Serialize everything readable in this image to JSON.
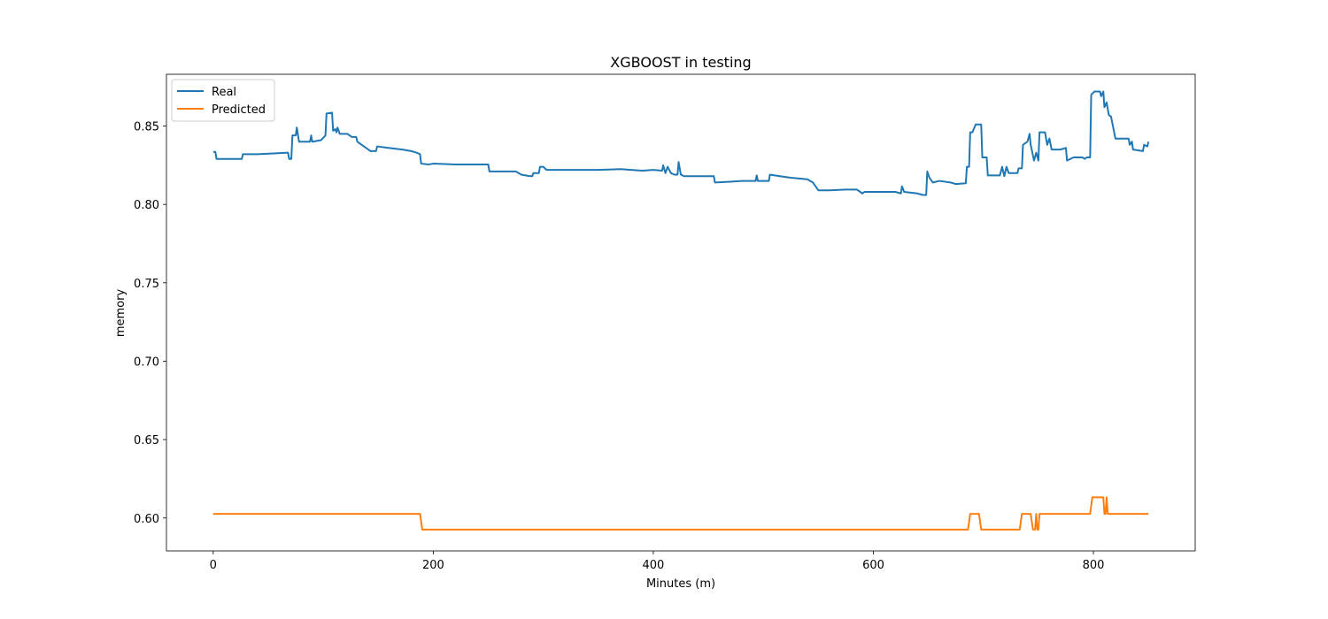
{
  "chart_data": {
    "type": "line",
    "title": "XGBOOST in testing",
    "xlabel": "Minutes (m)",
    "ylabel": "memory",
    "xlim": [
      -42.5,
      892.5
    ],
    "ylim": [
      0.579,
      0.883
    ],
    "x_ticks": [
      0,
      200,
      400,
      600,
      800
    ],
    "x_tick_labels": [
      "0",
      "200",
      "400",
      "600",
      "800"
    ],
    "y_ticks": [
      0.6,
      0.65,
      0.7,
      0.75,
      0.8,
      0.85
    ],
    "y_tick_labels": [
      "0.60",
      "0.65",
      "0.70",
      "0.75",
      "0.80",
      "0.85"
    ],
    "grid": false,
    "legend_position": "upper-left",
    "series": [
      {
        "name": "Real",
        "color": "#1f77b4",
        "points": [
          [
            0,
            0.8335
          ],
          [
            2,
            0.8335
          ],
          [
            3,
            0.829
          ],
          [
            20,
            0.829
          ],
          [
            26,
            0.829
          ],
          [
            27,
            0.832
          ],
          [
            40,
            0.832
          ],
          [
            55,
            0.8325
          ],
          [
            68,
            0.833
          ],
          [
            69,
            0.829
          ],
          [
            71,
            0.829
          ],
          [
            72,
            0.844
          ],
          [
            75,
            0.844
          ],
          [
            76,
            0.849
          ],
          [
            78,
            0.84
          ],
          [
            88,
            0.84
          ],
          [
            89,
            0.844
          ],
          [
            90,
            0.84
          ],
          [
            98,
            0.841
          ],
          [
            102,
            0.844
          ],
          [
            103,
            0.858
          ],
          [
            108,
            0.8585
          ],
          [
            109,
            0.847
          ],
          [
            111,
            0.848
          ],
          [
            112,
            0.846
          ],
          [
            113,
            0.849
          ],
          [
            115,
            0.845
          ],
          [
            122,
            0.845
          ],
          [
            126,
            0.843
          ],
          [
            130,
            0.843
          ],
          [
            131,
            0.84
          ],
          [
            135,
            0.838
          ],
          [
            139,
            0.836
          ],
          [
            143,
            0.834
          ],
          [
            148,
            0.834
          ],
          [
            149,
            0.837
          ],
          [
            160,
            0.836
          ],
          [
            172,
            0.835
          ],
          [
            180,
            0.834
          ],
          [
            185,
            0.833
          ],
          [
            188,
            0.832
          ],
          [
            189,
            0.826
          ],
          [
            196,
            0.8255
          ],
          [
            200,
            0.826
          ],
          [
            220,
            0.8255
          ],
          [
            250,
            0.8255
          ],
          [
            251,
            0.821
          ],
          [
            275,
            0.821
          ],
          [
            280,
            0.819
          ],
          [
            288,
            0.818
          ],
          [
            290,
            0.818
          ],
          [
            291,
            0.82
          ],
          [
            296,
            0.82
          ],
          [
            297,
            0.824
          ],
          [
            300,
            0.824
          ],
          [
            303,
            0.822
          ],
          [
            310,
            0.822
          ],
          [
            350,
            0.822
          ],
          [
            370,
            0.8225
          ],
          [
            390,
            0.8215
          ],
          [
            400,
            0.822
          ],
          [
            408,
            0.8215
          ],
          [
            409,
            0.825
          ],
          [
            411,
            0.82
          ],
          [
            413,
            0.824
          ],
          [
            416,
            0.82
          ],
          [
            419,
            0.819
          ],
          [
            422,
            0.819
          ],
          [
            423,
            0.827
          ],
          [
            425,
            0.819
          ],
          [
            428,
            0.818
          ],
          [
            437,
            0.818
          ],
          [
            443,
            0.818
          ],
          [
            455,
            0.818
          ],
          [
            456,
            0.814
          ],
          [
            470,
            0.8145
          ],
          [
            480,
            0.815
          ],
          [
            493,
            0.815
          ],
          [
            494,
            0.8185
          ],
          [
            495,
            0.815
          ],
          [
            505,
            0.815
          ],
          [
            506,
            0.819
          ],
          [
            515,
            0.818
          ],
          [
            525,
            0.817
          ],
          [
            540,
            0.816
          ],
          [
            545,
            0.814
          ],
          [
            550,
            0.809
          ],
          [
            560,
            0.809
          ],
          [
            575,
            0.8095
          ],
          [
            585,
            0.8095
          ],
          [
            590,
            0.807
          ],
          [
            592,
            0.808
          ],
          [
            620,
            0.808
          ],
          [
            625,
            0.807
          ],
          [
            626,
            0.8115
          ],
          [
            628,
            0.808
          ],
          [
            640,
            0.807
          ],
          [
            645,
            0.806
          ],
          [
            648,
            0.806
          ],
          [
            649,
            0.821
          ],
          [
            651,
            0.817
          ],
          [
            654,
            0.814
          ],
          [
            660,
            0.815
          ],
          [
            670,
            0.814
          ],
          [
            675,
            0.813
          ],
          [
            684,
            0.8135
          ],
          [
            685,
            0.824
          ],
          [
            687,
            0.824
          ],
          [
            688,
            0.846
          ],
          [
            690,
            0.846
          ],
          [
            693,
            0.851
          ],
          [
            698,
            0.851
          ],
          [
            699,
            0.83
          ],
          [
            703,
            0.83
          ],
          [
            704,
            0.8185
          ],
          [
            715,
            0.8185
          ],
          [
            717,
            0.824
          ],
          [
            719,
            0.818
          ],
          [
            721,
            0.824
          ],
          [
            723,
            0.82
          ],
          [
            731,
            0.82
          ],
          [
            732,
            0.823
          ],
          [
            735,
            0.823
          ],
          [
            736,
            0.838
          ],
          [
            740,
            0.84
          ],
          [
            742,
            0.845
          ],
          [
            743,
            0.838
          ],
          [
            746,
            0.828
          ],
          [
            748,
            0.833
          ],
          [
            750,
            0.828
          ],
          [
            751,
            0.846
          ],
          [
            756,
            0.846
          ],
          [
            758,
            0.838
          ],
          [
            760,
            0.842
          ],
          [
            762,
            0.835
          ],
          [
            770,
            0.835
          ],
          [
            775,
            0.836
          ],
          [
            776,
            0.828
          ],
          [
            782,
            0.83
          ],
          [
            790,
            0.83
          ],
          [
            792,
            0.829
          ],
          [
            794,
            0.83
          ],
          [
            797,
            0.83
          ],
          [
            798,
            0.87
          ],
          [
            801,
            0.872
          ],
          [
            806,
            0.872
          ],
          [
            807,
            0.869
          ],
          [
            809,
            0.872
          ],
          [
            810,
            0.862
          ],
          [
            812,
            0.865
          ],
          [
            814,
            0.857
          ],
          [
            816,
            0.856
          ],
          [
            820,
            0.842
          ],
          [
            832,
            0.842
          ],
          [
            833,
            0.838
          ],
          [
            835,
            0.84
          ],
          [
            836,
            0.835
          ],
          [
            845,
            0.834
          ],
          [
            846,
            0.838
          ],
          [
            849,
            0.837
          ],
          [
            850,
            0.84
          ]
        ]
      },
      {
        "name": "Predicted",
        "color": "#ff7f0e",
        "points": [
          [
            0,
            0.6026
          ],
          [
            188,
            0.6026
          ],
          [
            190,
            0.5926
          ],
          [
            686,
            0.5926
          ],
          [
            688,
            0.6026
          ],
          [
            696,
            0.6026
          ],
          [
            698,
            0.5926
          ],
          [
            733,
            0.5926
          ],
          [
            735,
            0.6026
          ],
          [
            743,
            0.6026
          ],
          [
            745,
            0.5926
          ],
          [
            747,
            0.5926
          ],
          [
            748,
            0.6026
          ],
          [
            749,
            0.5926
          ],
          [
            750,
            0.5926
          ],
          [
            751,
            0.6026
          ],
          [
            797,
            0.6026
          ],
          [
            799,
            0.6132
          ],
          [
            809,
            0.6132
          ],
          [
            810,
            0.6026
          ],
          [
            811,
            0.6026
          ],
          [
            812,
            0.6132
          ],
          [
            813,
            0.6026
          ],
          [
            850,
            0.6026
          ]
        ]
      }
    ]
  }
}
